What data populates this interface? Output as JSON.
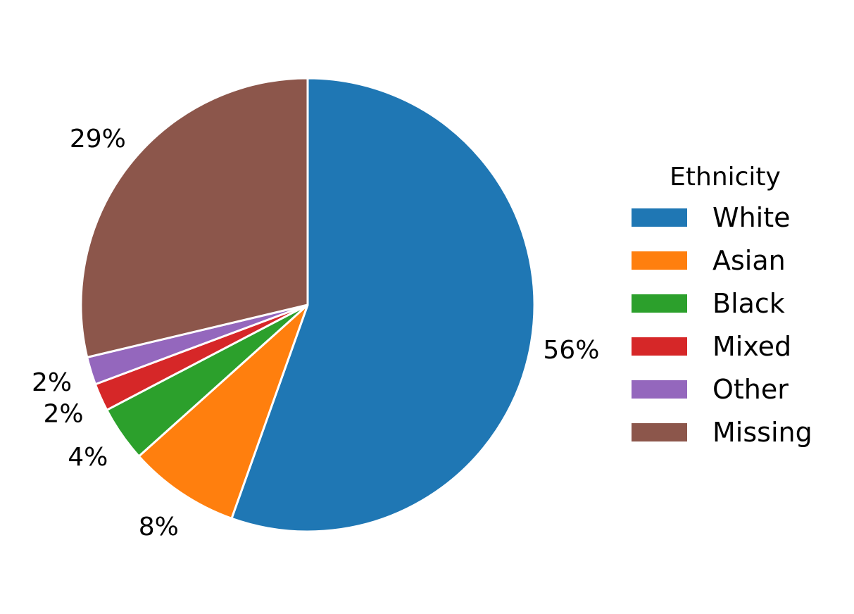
{
  "chart_data": {
    "type": "pie",
    "title": "",
    "legend": {
      "title": "Ethnicity",
      "placement": "center-right"
    },
    "slices": [
      {
        "label": "White",
        "value": 56,
        "display": "56%",
        "color": "#1f77b4"
      },
      {
        "label": "Asian",
        "value": 8,
        "display": "8%",
        "color": "#ff7f0e"
      },
      {
        "label": "Black",
        "value": 4,
        "display": "4%",
        "color": "#2ca02c"
      },
      {
        "label": "Mixed",
        "value": 2,
        "display": "2%",
        "color": "#d62728"
      },
      {
        "label": "Other",
        "value": 2,
        "display": "2%",
        "color": "#9467bd"
      },
      {
        "label": "Missing",
        "value": 29,
        "display": "29%",
        "color": "#8c564b"
      }
    ],
    "start": "top",
    "direction": "clockwise",
    "wedge_edge_color": "#ffffff"
  }
}
